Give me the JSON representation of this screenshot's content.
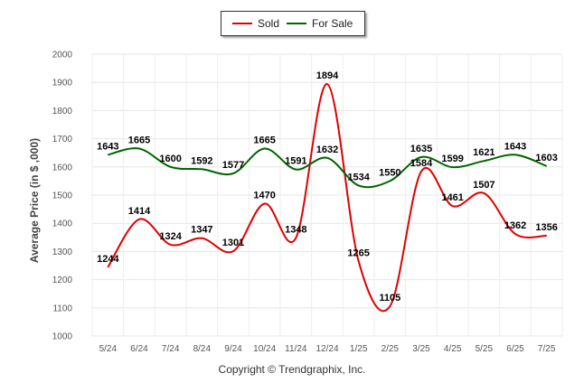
{
  "chart_data": {
    "type": "line",
    "categories": [
      "5/24",
      "6/24",
      "7/24",
      "8/24",
      "9/24",
      "10/24",
      "11/24",
      "12/24",
      "1/25",
      "2/25",
      "3/25",
      "4/25",
      "5/25",
      "6/25",
      "7/25"
    ],
    "series": [
      {
        "name": "Sold",
        "color": "#e00000",
        "values": [
          1244,
          1414,
          1324,
          1347,
          1301,
          1470,
          1348,
          1894,
          1265,
          1105,
          1584,
          1461,
          1507,
          1362,
          1356
        ]
      },
      {
        "name": "For Sale",
        "color": "#006400",
        "values": [
          1643,
          1665,
          1600,
          1592,
          1577,
          1665,
          1591,
          1632,
          1534,
          1550,
          1635,
          1599,
          1621,
          1643,
          1603
        ]
      }
    ],
    "ylabel": "Average Price (in $ ,000)",
    "yticks": [
      "1000",
      "1100",
      "1200",
      "1300",
      "1400",
      "1500",
      "1600",
      "1700",
      "1800",
      "1900",
      "2000"
    ],
    "ylim": [
      1000,
      2000
    ],
    "grid": true,
    "legend_position": "top-center"
  },
  "footer": {
    "copyright": "Copyright © Trendgraphix, Inc."
  }
}
